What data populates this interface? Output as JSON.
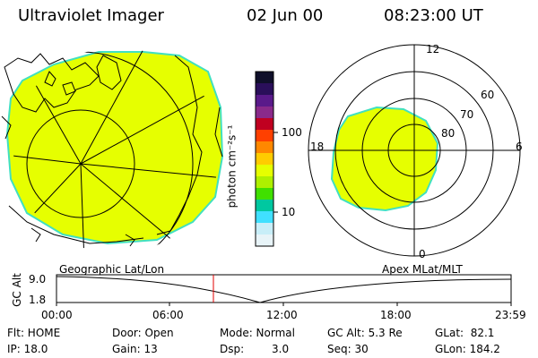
{
  "header": {
    "instrument": "Ultraviolet Imager",
    "date": "02 Jun 00",
    "time": "08:23:00 UT"
  },
  "colorbar": {
    "unit_label": "photon cm⁻²s⁻¹",
    "ticks": [
      "100",
      "10"
    ],
    "colors": [
      "#0f0f2a",
      "#2a0f5a",
      "#5a1a8a",
      "#8a2a8a",
      "#c00020",
      "#ff4000",
      "#ff8800",
      "#ffcc00",
      "#e6ff00",
      "#aef000",
      "#40e000",
      "#00c8a0",
      "#40e0ff",
      "#c8eef8",
      "#e8f4f8"
    ]
  },
  "polar_plot": {
    "mlt_labels": {
      "top": "12",
      "left": "18",
      "right": "6",
      "bottom": "0"
    },
    "lat_labels": [
      "60",
      "70",
      "80"
    ]
  },
  "timeline": {
    "left_title": "Geographic Lat/Lon",
    "right_title": "Apex MLat/MLT",
    "ylabel": "GC Alt",
    "y_ticks": [
      "9.0",
      "1.8"
    ],
    "x_ticks": [
      "00:00",
      "06:00",
      "12:00",
      "18:00",
      "23:59"
    ],
    "cursor_time": "08:23"
  },
  "status": {
    "flt": "Flt: HOME",
    "ip": "IP: 18.0",
    "door": "Door: Open",
    "gain": "Gain: 13",
    "mode": "Mode: Normal",
    "dsp_label": "Dsp:",
    "dsp_value": "3.0",
    "gc_alt": "GC Alt: 5.3 Re",
    "seq": "Seq: 30",
    "glat": "GLat:  82.1",
    "glon": "GLon: 184.2"
  },
  "colors": {
    "aurora_fill": "#e6ff00",
    "aurora_edge": "#40e0c0",
    "cursor": "#e00000"
  }
}
